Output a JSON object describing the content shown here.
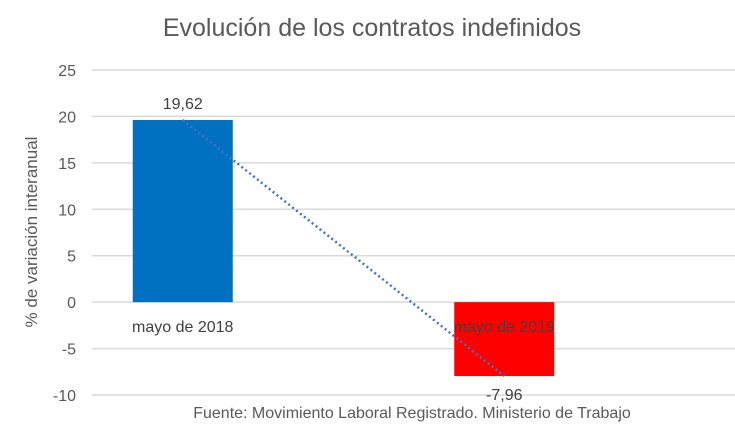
{
  "chart_data": {
    "type": "bar",
    "title": "Evolución de los contratos indefinidos",
    "ylabel": "% de variación interanual",
    "xlabel": "",
    "categories": [
      "mayo de 2018",
      "mayo de 2019"
    ],
    "values": [
      19.62,
      -7.96
    ],
    "data_labels": [
      "19,62",
      "-7,96"
    ],
    "bar_colors": [
      "#0070C0",
      "#FF0000"
    ],
    "ylim": [
      -10,
      25
    ],
    "yticks": [
      25,
      20,
      15,
      10,
      5,
      0,
      -5,
      -10
    ],
    "grid": true,
    "trendline": {
      "type": "linear",
      "style": "dotted",
      "color": "#4472C4"
    },
    "footnote": "Fuente: Movimiento Laboral Registrado. Ministerio de Trabajo"
  }
}
